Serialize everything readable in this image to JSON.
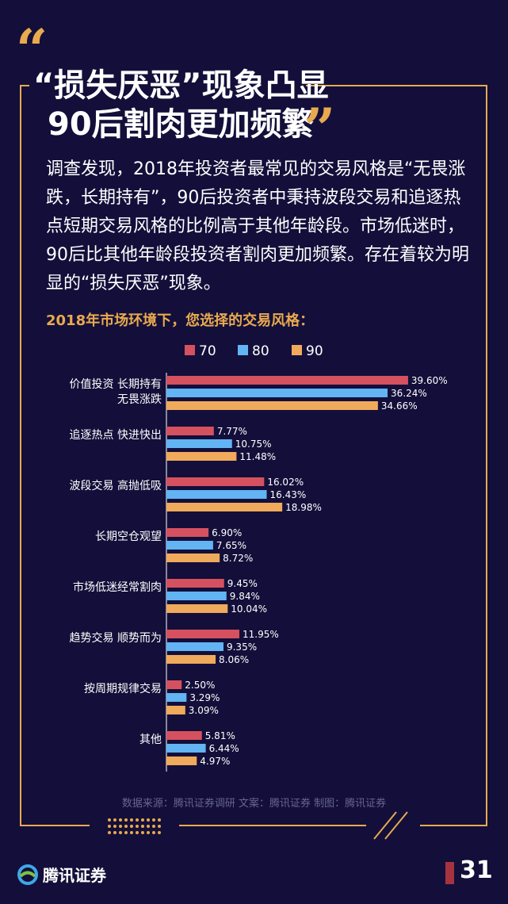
{
  "header": {
    "title_line1": "“损失厌恶”现象凸显",
    "title_line2": "90后割肉更加频繁"
  },
  "intro_text": "调查发现，2018年投资者最常见的交易风格是“无畏涨跌，长期持有”，90后投资者中秉持波段交易和追逐热点短期交易风格的比例高于其他年龄段。市场低迷时，90后比其他年龄段投资者割肉更加频繁。存在着较为明显的“损失厌恶”现象。",
  "footer": {
    "source": "数据来源：腾讯证券调研   文案：腾讯证券   制图：腾讯证券",
    "logo_text": "腾讯证券",
    "page_number": "31"
  },
  "colors": {
    "accent": "#e9a94e",
    "series_70": "#d5515f",
    "series_80": "#62b4f3",
    "series_90": "#f0aa5c",
    "background": "#130f3a"
  },
  "chart_data": {
    "type": "bar",
    "orientation": "horizontal",
    "title": "2018年市场环境下，您选择的交易风格：",
    "legend_position": "top",
    "categories": [
      [
        "价值投资 长期持有",
        "无畏涨跌"
      ],
      [
        "追逐热点 快进快出"
      ],
      [
        "波段交易 高抛低吸"
      ],
      [
        "长期空仓观望"
      ],
      [
        "市场低迷经常割肉"
      ],
      [
        "趋势交易 顺势而为"
      ],
      [
        "按周期规律交易"
      ],
      [
        "其他"
      ]
    ],
    "series": [
      {
        "name": "70",
        "values": [
          39.6,
          7.77,
          16.02,
          6.9,
          9.45,
          11.95,
          2.5,
          5.81
        ],
        "labels": [
          "39.60%",
          "7.77%",
          "16.02%",
          "6.90%",
          "9.45%",
          "11.95%",
          "2.50%",
          "5.81%"
        ]
      },
      {
        "name": "80",
        "values": [
          36.24,
          10.75,
          16.43,
          7.65,
          9.84,
          9.35,
          3.29,
          6.44
        ],
        "labels": [
          "36.24%",
          "10.75%",
          "16.43%",
          "7.65%",
          "9.84%",
          "9.35%",
          "3.29%",
          "6.44%"
        ]
      },
      {
        "name": "90",
        "values": [
          34.66,
          11.48,
          18.98,
          8.72,
          10.04,
          8.06,
          3.09,
          4.97
        ],
        "labels": [
          "34.66%",
          "11.48%",
          "18.98%",
          "8.72%",
          "10.04%",
          "8.06%",
          "3.09%",
          "4.97%"
        ]
      }
    ],
    "xlim": [
      0,
      40
    ],
    "grid": false
  }
}
